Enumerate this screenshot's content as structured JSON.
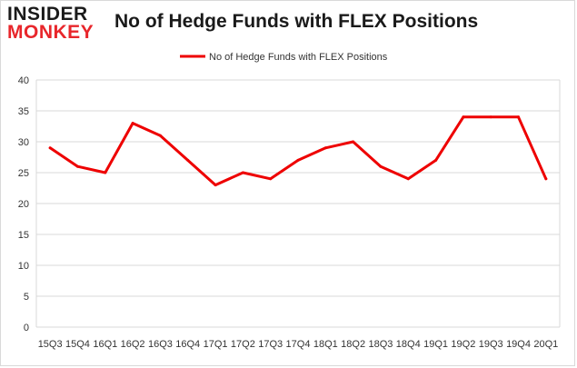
{
  "logo": {
    "line1": "INSIDER",
    "line2": "MONKEY"
  },
  "chart_data": {
    "type": "line",
    "title": "No of Hedge Funds with FLEX Positions",
    "xlabel": "",
    "ylabel": "",
    "ylim": [
      0,
      40
    ],
    "yticks": [
      0,
      5,
      10,
      15,
      20,
      25,
      30,
      35,
      40
    ],
    "grid": true,
    "legend": "top-center",
    "categories": [
      "15Q3",
      "15Q4",
      "16Q1",
      "16Q2",
      "16Q3",
      "16Q4",
      "17Q1",
      "17Q2",
      "17Q3",
      "17Q4",
      "18Q1",
      "18Q2",
      "18Q3",
      "18Q4",
      "19Q1",
      "19Q2",
      "19Q3",
      "19Q4",
      "20Q1"
    ],
    "series": [
      {
        "name": "No of Hedge Funds with FLEX Positions",
        "color": "#ee0000",
        "values": [
          29,
          26,
          25,
          33,
          31,
          27,
          23,
          25,
          24,
          27,
          29,
          30,
          26,
          24,
          27,
          34,
          34,
          34,
          24
        ]
      }
    ]
  }
}
